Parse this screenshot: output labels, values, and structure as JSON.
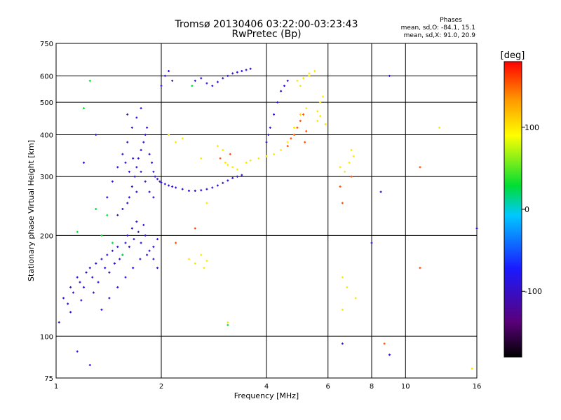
{
  "chart_data": {
    "type": "scatter",
    "title": "Tromsø 20130406 03:22:00-03:23:43",
    "subtitle": "RwPretec (Bp)",
    "xlabel": "Frequency [MHz]",
    "ylabel": "Stationary phase Virtual Height [km]",
    "x_scale": "log",
    "y_scale": "log",
    "xlim": [
      1,
      16
    ],
    "ylim": [
      75,
      750
    ],
    "x_ticks": [
      1,
      2,
      4,
      6,
      8,
      10,
      16
    ],
    "x_tick_labels": [
      "1",
      "2",
      "4",
      "6",
      "8",
      "10",
      "16"
    ],
    "y_ticks": [
      75,
      100,
      200,
      300,
      400,
      500,
      600,
      750
    ],
    "y_tick_labels": [
      "75",
      "100",
      "200",
      "300",
      "400",
      "500",
      "600",
      "750"
    ],
    "grid": true,
    "info": {
      "heading": "Phases",
      "line1": "mean, sd,O: -84.1, 15.1",
      "line2": "mean, sd,X:  91.0, 20.9"
    },
    "colorbar": {
      "label": "[deg]",
      "range": [
        -180,
        180
      ],
      "ticks": [
        100,
        0,
        -100
      ],
      "tick_labels": [
        "100",
        "0",
        "-100"
      ],
      "colors": [
        "#000000",
        "#5a007a",
        "#1a1aff",
        "#00c8ff",
        "#00dd33",
        "#ffff00",
        "#ff9900",
        "#ff0000"
      ]
    },
    "series": [
      {
        "phase": -95,
        "points": [
          [
            1.05,
            130
          ],
          [
            1.08,
            125
          ],
          [
            1.1,
            140
          ],
          [
            1.12,
            135
          ],
          [
            1.15,
            150
          ],
          [
            1.17,
            145
          ],
          [
            1.2,
            140
          ],
          [
            1.22,
            155
          ],
          [
            1.25,
            160
          ],
          [
            1.27,
            150
          ],
          [
            1.3,
            165
          ],
          [
            1.32,
            145
          ],
          [
            1.35,
            170
          ],
          [
            1.38,
            160
          ],
          [
            1.4,
            175
          ],
          [
            1.42,
            155
          ],
          [
            1.45,
            180
          ],
          [
            1.47,
            165
          ],
          [
            1.5,
            185
          ],
          [
            1.52,
            170
          ],
          [
            1.55,
            175
          ],
          [
            1.58,
            190
          ],
          [
            1.6,
            200
          ],
          [
            1.62,
            185
          ],
          [
            1.65,
            210
          ],
          [
            1.67,
            195
          ],
          [
            1.7,
            220
          ],
          [
            1.72,
            205
          ],
          [
            1.75,
            190
          ],
          [
            1.78,
            215
          ],
          [
            1.8,
            200
          ],
          [
            1.85,
            180
          ],
          [
            1.9,
            170
          ],
          [
            1.95,
            160
          ],
          [
            1.5,
            230
          ],
          [
            1.55,
            240
          ],
          [
            1.6,
            250
          ],
          [
            1.62,
            260
          ],
          [
            1.65,
            280
          ],
          [
            1.68,
            300
          ],
          [
            1.7,
            320
          ],
          [
            1.72,
            340
          ],
          [
            1.75,
            360
          ],
          [
            1.78,
            380
          ],
          [
            1.8,
            400
          ],
          [
            1.82,
            420
          ],
          [
            1.85,
            350
          ],
          [
            1.88,
            330
          ],
          [
            1.9,
            310
          ],
          [
            1.92,
            300
          ],
          [
            1.95,
            295
          ],
          [
            1.98,
            290
          ],
          [
            2.0,
            288
          ],
          [
            2.05,
            285
          ],
          [
            2.1,
            282
          ],
          [
            2.15,
            280
          ],
          [
            2.2,
            278
          ],
          [
            2.3,
            275
          ],
          [
            2.4,
            272
          ],
          [
            2.5,
            272
          ],
          [
            2.6,
            273
          ],
          [
            2.7,
            275
          ],
          [
            2.8,
            278
          ],
          [
            2.9,
            282
          ],
          [
            3.0,
            287
          ],
          [
            3.1,
            292
          ],
          [
            3.2,
            297
          ],
          [
            3.3,
            300
          ],
          [
            3.4,
            303
          ],
          [
            1.4,
            260
          ],
          [
            1.45,
            290
          ],
          [
            1.5,
            320
          ],
          [
            1.55,
            350
          ],
          [
            1.6,
            380
          ],
          [
            1.65,
            420
          ],
          [
            1.7,
            450
          ],
          [
            1.75,
            480
          ],
          [
            1.6,
            460
          ],
          [
            1.58,
            330
          ],
          [
            1.62,
            310
          ],
          [
            1.66,
            340
          ],
          [
            1.7,
            270
          ],
          [
            1.75,
            310
          ],
          [
            1.8,
            290
          ],
          [
            1.85,
            270
          ],
          [
            1.9,
            260
          ],
          [
            2.0,
            560
          ],
          [
            2.05,
            600
          ],
          [
            2.1,
            620
          ],
          [
            2.15,
            580
          ],
          [
            2.5,
            580
          ],
          [
            2.6,
            590
          ],
          [
            2.7,
            570
          ],
          [
            2.8,
            560
          ],
          [
            2.9,
            575
          ],
          [
            3.0,
            590
          ],
          [
            3.1,
            600
          ],
          [
            3.2,
            610
          ],
          [
            3.3,
            615
          ],
          [
            3.4,
            620
          ],
          [
            3.5,
            625
          ],
          [
            3.6,
            630
          ],
          [
            4.0,
            380
          ],
          [
            4.05,
            400
          ],
          [
            4.1,
            420
          ],
          [
            4.2,
            460
          ],
          [
            4.3,
            500
          ],
          [
            4.4,
            540
          ],
          [
            4.5,
            560
          ],
          [
            4.6,
            580
          ],
          [
            1.02,
            110
          ],
          [
            1.1,
            118
          ],
          [
            1.18,
            128
          ],
          [
            1.28,
            135
          ],
          [
            1.35,
            120
          ],
          [
            1.42,
            130
          ],
          [
            1.5,
            140
          ],
          [
            1.58,
            150
          ],
          [
            1.66,
            160
          ],
          [
            1.74,
            170
          ],
          [
            1.82,
            175
          ],
          [
            1.9,
            185
          ],
          [
            1.95,
            195
          ],
          [
            1.3,
            400
          ],
          [
            1.2,
            330
          ],
          [
            1.15,
            90
          ],
          [
            1.25,
            82
          ],
          [
            8.0,
            190
          ],
          [
            8.5,
            270
          ],
          [
            9.0,
            88
          ],
          [
            6.6,
            95
          ],
          [
            9.0,
            600
          ],
          [
            16,
            210
          ]
        ]
      },
      {
        "phase": 100,
        "points": [
          [
            2.4,
            170
          ],
          [
            2.5,
            165
          ],
          [
            2.6,
            175
          ],
          [
            2.65,
            160
          ],
          [
            2.7,
            168
          ],
          [
            2.9,
            370
          ],
          [
            3.0,
            360
          ],
          [
            3.05,
            330
          ],
          [
            3.1,
            325
          ],
          [
            3.2,
            320
          ],
          [
            3.3,
            315
          ],
          [
            3.5,
            330
          ],
          [
            3.6,
            335
          ],
          [
            3.8,
            340
          ],
          [
            4.0,
            345
          ],
          [
            4.2,
            350
          ],
          [
            4.4,
            360
          ],
          [
            4.6,
            380
          ],
          [
            4.8,
            420
          ],
          [
            5.0,
            460
          ],
          [
            5.2,
            480
          ],
          [
            5.6,
            470
          ],
          [
            5.7,
            500
          ],
          [
            5.8,
            520
          ],
          [
            5.6,
            440
          ],
          [
            5.7,
            455
          ],
          [
            5.9,
            430
          ],
          [
            5.0,
            560
          ],
          [
            5.1,
            590
          ],
          [
            5.3,
            610
          ],
          [
            5.5,
            620
          ],
          [
            2.1,
            400
          ],
          [
            2.2,
            380
          ],
          [
            2.3,
            390
          ],
          [
            2.6,
            340
          ],
          [
            2.7,
            250
          ],
          [
            6.5,
            320
          ],
          [
            6.7,
            310
          ],
          [
            6.9,
            330
          ],
          [
            7.0,
            360
          ],
          [
            7.1,
            345
          ],
          [
            3.1,
            110
          ],
          [
            12.5,
            420
          ],
          [
            6.6,
            150
          ],
          [
            6.8,
            140
          ],
          [
            7.2,
            130
          ],
          [
            6.6,
            120
          ],
          [
            15.5,
            80
          ],
          [
            5.3,
            600
          ],
          [
            4.9,
            580
          ]
        ]
      },
      {
        "phase": 155,
        "points": [
          [
            4.8,
            400
          ],
          [
            4.9,
            420
          ],
          [
            5.0,
            440
          ],
          [
            5.1,
            460
          ],
          [
            5.15,
            380
          ],
          [
            5.2,
            410
          ],
          [
            4.7,
            390
          ],
          [
            4.6,
            370
          ],
          [
            2.5,
            210
          ],
          [
            2.95,
            340
          ],
          [
            3.15,
            350
          ],
          [
            2.2,
            190
          ],
          [
            6.5,
            280
          ],
          [
            6.6,
            250
          ],
          [
            8.7,
            95
          ],
          [
            7.0,
            300
          ],
          [
            11.0,
            320
          ],
          [
            11.0,
            160
          ]
        ]
      },
      {
        "phase": 30,
        "points": [
          [
            1.25,
            580
          ],
          [
            1.2,
            480
          ],
          [
            1.15,
            205
          ],
          [
            1.3,
            240
          ],
          [
            1.45,
            190
          ],
          [
            1.55,
            175
          ],
          [
            2.45,
            560
          ],
          [
            3.1,
            108
          ],
          [
            1.4,
            230
          ],
          [
            1.35,
            200
          ]
        ]
      }
    ]
  }
}
